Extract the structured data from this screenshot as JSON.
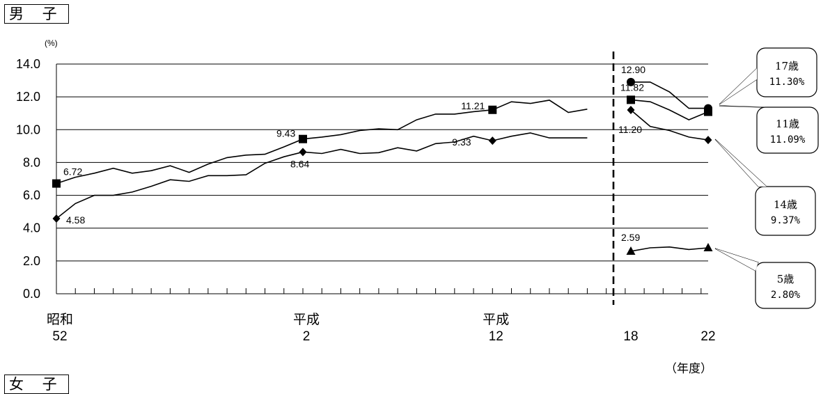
{
  "panel_title": "男 子",
  "next_panel_title": "女 子",
  "x_unit_label": "（年度）",
  "chart_data": {
    "type": "line",
    "title": "",
    "ylabel": "(%)",
    "xlabel": "（年度）",
    "ylim": [
      0,
      14
    ],
    "yticks": [
      "0.0",
      "2.0",
      "4.0",
      "6.0",
      "8.0",
      "10.0",
      "12.0",
      "14.0"
    ],
    "grid": true,
    "legend": "callouts-right",
    "x_axis_labels": [
      {
        "top": "昭和",
        "bottom": "52",
        "x": 1977
      },
      {
        "top": "平成",
        "bottom": "2",
        "x": 1990
      },
      {
        "top": "平成",
        "bottom": "12",
        "x": 2000
      },
      {
        "top": "",
        "bottom": "18",
        "x": 2006
      },
      {
        "top": "",
        "bottom": "22",
        "x": 2010
      }
    ],
    "colors": {
      "line": "#000000",
      "grid": "#000000",
      "divider": "#000000"
    },
    "series": [
      {
        "segment": "upper",
        "marker": "square",
        "x": [
          1977,
          1978,
          1979,
          1980,
          1981,
          1982,
          1983,
          1984,
          1985,
          1986,
          1987,
          1988,
          1989,
          1990,
          1991,
          1992,
          1993,
          1994,
          1995,
          1996,
          1997,
          1998,
          1999,
          2000,
          2001,
          2002,
          2003,
          2004,
          2005
        ],
        "values": [
          6.72,
          7.1,
          7.35,
          7.65,
          7.35,
          7.5,
          7.8,
          7.4,
          7.9,
          8.3,
          8.45,
          8.5,
          8.95,
          9.43,
          9.55,
          9.7,
          9.95,
          10.05,
          10.0,
          10.6,
          10.95,
          10.95,
          11.1,
          11.21,
          11.7,
          11.6,
          11.8,
          11.05,
          11.25
        ],
        "markers": [
          {
            "x": 1977,
            "value": 6.72,
            "label": "6.72"
          },
          {
            "x": 1990,
            "value": 9.43,
            "label": "9.43"
          },
          {
            "x": 2000,
            "value": 11.21,
            "label": "11.21"
          }
        ]
      },
      {
        "segment": "lower",
        "marker": "diamond",
        "x": [
          1977,
          1978,
          1979,
          1980,
          1981,
          1982,
          1983,
          1984,
          1985,
          1986,
          1987,
          1988,
          1989,
          1990,
          1991,
          1992,
          1993,
          1994,
          1995,
          1996,
          1997,
          1998,
          1999,
          2000,
          2001,
          2002,
          2003,
          2004,
          2005
        ],
        "values": [
          4.58,
          5.5,
          6.0,
          6.0,
          6.2,
          6.55,
          6.95,
          6.85,
          7.2,
          7.2,
          7.25,
          7.95,
          8.35,
          8.64,
          8.55,
          8.8,
          8.55,
          8.6,
          8.9,
          8.7,
          9.15,
          9.25,
          9.6,
          9.33,
          9.6,
          9.8,
          9.5,
          9.5,
          9.5
        ],
        "markers": [
          {
            "x": 1977,
            "value": 4.58,
            "label": "4.58"
          },
          {
            "x": 1990,
            "value": 8.64,
            "label": "8.64"
          },
          {
            "x": 2000,
            "value": 9.33,
            "label": "9.33"
          }
        ]
      },
      {
        "segment": "recent",
        "name": "17歳",
        "marker": "circle",
        "x": [
          2006,
          2007,
          2008,
          2009,
          2010
        ],
        "values": [
          12.9,
          12.9,
          12.3,
          11.3,
          11.3
        ],
        "markers": [
          {
            "x": 2006,
            "value": 12.9,
            "label": "12.90"
          },
          {
            "x": 2010,
            "value": 11.3,
            "label": ""
          }
        ],
        "callout": {
          "age": "17歳",
          "value": "11.30%"
        }
      },
      {
        "segment": "recent",
        "name": "11歳",
        "marker": "square",
        "x": [
          2006,
          2007,
          2008,
          2009,
          2010
        ],
        "values": [
          11.82,
          11.7,
          11.2,
          10.6,
          11.09
        ],
        "markers": [
          {
            "x": 2006,
            "value": 11.82,
            "label": "11.82"
          },
          {
            "x": 2010,
            "value": 11.09,
            "label": ""
          }
        ],
        "callout": {
          "age": "11歳",
          "value": "11.09%"
        }
      },
      {
        "segment": "recent",
        "name": "14歳",
        "marker": "diamond",
        "x": [
          2006,
          2007,
          2008,
          2009,
          2010
        ],
        "values": [
          11.2,
          10.2,
          9.95,
          9.55,
          9.37
        ],
        "markers": [
          {
            "x": 2006,
            "value": 11.2,
            "label": "11.20"
          },
          {
            "x": 2010,
            "value": 9.37,
            "label": ""
          }
        ],
        "callout": {
          "age": "14歳",
          "value": "9.37%"
        }
      },
      {
        "segment": "recent",
        "name": "5歳",
        "marker": "triangle",
        "x": [
          2006,
          2007,
          2008,
          2009,
          2010
        ],
        "values": [
          2.59,
          2.8,
          2.85,
          2.7,
          2.8
        ],
        "markers": [
          {
            "x": 2006,
            "value": 2.59,
            "label": "2.59"
          },
          {
            "x": 2010,
            "value": 2.8,
            "label": ""
          }
        ],
        "callout": {
          "age": "5歳",
          "value": "2.80%"
        }
      }
    ]
  }
}
